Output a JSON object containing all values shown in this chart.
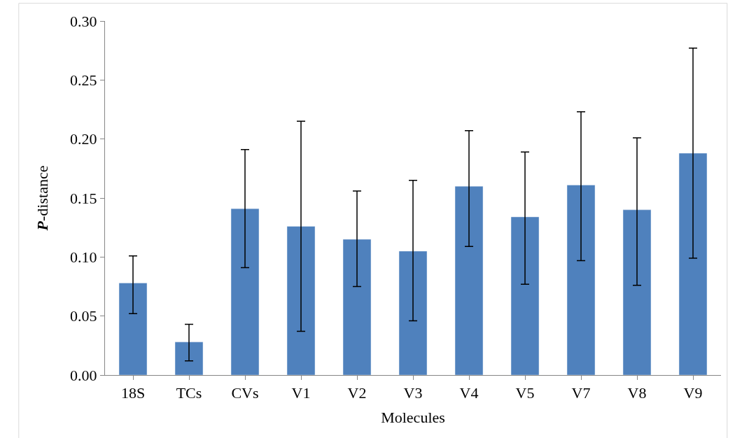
{
  "chart_data": {
    "type": "bar",
    "xlabel": "Molecules",
    "ylabel": "P-distance",
    "categories": [
      "18S",
      "TCs",
      "CVs",
      "V1",
      "V2",
      "V3",
      "V4",
      "V5",
      "V7",
      "V8",
      "V9"
    ],
    "values": [
      0.078,
      0.028,
      0.141,
      0.126,
      0.115,
      0.105,
      0.16,
      0.134,
      0.161,
      0.14,
      0.188
    ],
    "errors": [
      [
        0.052,
        0.101
      ],
      [
        0.012,
        0.043
      ],
      [
        0.091,
        0.191
      ],
      [
        0.037,
        0.215
      ],
      [
        0.075,
        0.156
      ],
      [
        0.046,
        0.165
      ],
      [
        0.109,
        0.207
      ],
      [
        0.077,
        0.189
      ],
      [
        0.097,
        0.223
      ],
      [
        0.076,
        0.201
      ],
      [
        0.099,
        0.277
      ]
    ],
    "color": "#4f81bd",
    "ylim": [
      0,
      0.3
    ],
    "yticks": [
      {
        "value": 0,
        "label": "0.00"
      },
      {
        "value": 0.05,
        "label": "0.05"
      },
      {
        "value": 0.1,
        "label": "0.10"
      },
      {
        "value": 0.15,
        "label": "0.15"
      },
      {
        "value": 0.2,
        "label": "0.20"
      },
      {
        "value": 0.25,
        "label": "0.25"
      },
      {
        "value": 0.3,
        "label": "0.30"
      }
    ]
  }
}
